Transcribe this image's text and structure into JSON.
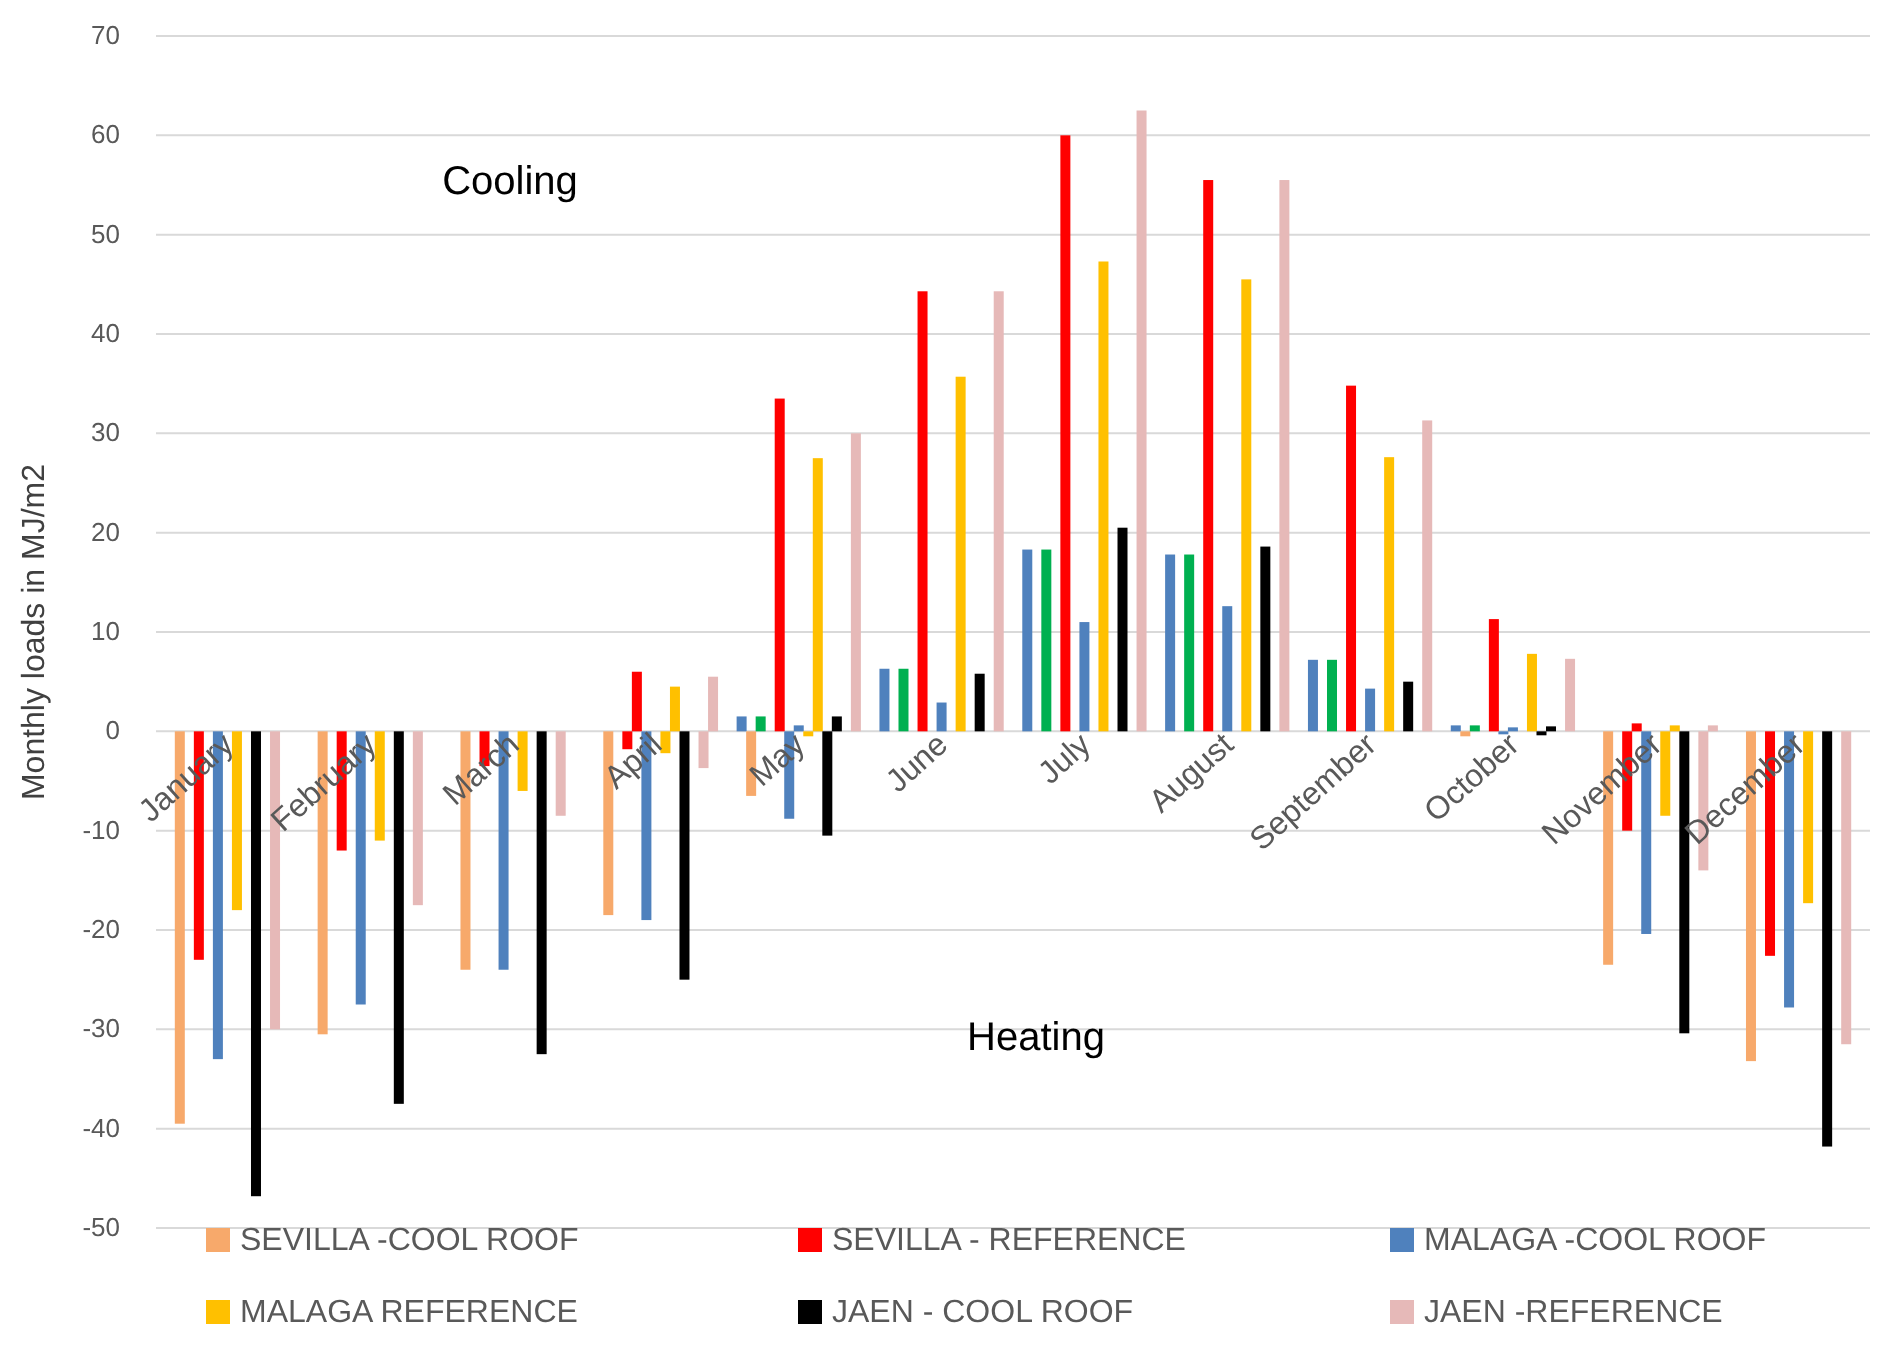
{
  "chart_data": {
    "type": "bar",
    "ylabel": "Monthly loads in MJ/m2",
    "categories": [
      "January",
      "February",
      "March",
      "April",
      "May",
      "June",
      "July",
      "August",
      "September",
      "October",
      "November",
      "December"
    ],
    "ylim": [
      -50,
      70
    ],
    "yticks": [
      -50,
      -40,
      -30,
      -20,
      -10,
      0,
      10,
      20,
      30,
      40,
      50,
      60,
      70
    ],
    "grid": "y",
    "legend": "bottom",
    "annotations": [
      "Cooling",
      "Heating"
    ],
    "series": [
      {
        "color": "#4f81bd",
        "values": [
          0,
          0,
          0,
          0,
          1.5,
          6.3,
          18.3,
          17.8,
          7.2,
          0.6,
          0,
          0
        ]
      },
      {
        "name": "SEVILLA -COOL ROOF",
        "color": "#f7a96b",
        "values": [
          -39.5,
          -30.5,
          -24,
          -18.5,
          -6.5,
          0,
          0,
          0,
          0,
          -0.5,
          -23.5,
          -33.2
        ]
      },
      {
        "color": "#00b050",
        "values": [
          0,
          0,
          0,
          0,
          1.5,
          6.3,
          18.3,
          17.8,
          7.2,
          0.6,
          0,
          0
        ]
      },
      {
        "name": "SEVILLA - REFERENCE",
        "color": "#ff0000",
        "values": [
          -23,
          -12,
          -3.5,
          -1.8,
          0,
          0,
          0,
          0,
          0,
          0,
          -10,
          -22.6
        ]
      },
      {
        "color": "#ff0000",
        "values": [
          0,
          0,
          0,
          6,
          33.5,
          44.3,
          60,
          55.5,
          34.8,
          11.3,
          0.8,
          0
        ]
      },
      {
        "name": "MALAGA   -COOL ROOF",
        "color": "#4f81bd",
        "values": [
          -33,
          -27.5,
          -24,
          -19,
          -8.8,
          0,
          0,
          0,
          0,
          -0.3,
          -20.4,
          -27.8
        ]
      },
      {
        "color": "#4f81bd",
        "values": [
          0,
          0,
          0,
          0,
          0.6,
          2.9,
          11,
          12.6,
          4.3,
          0.4,
          0,
          0
        ]
      },
      {
        "name": "MALAGA REFERENCE",
        "color": "#ffc000",
        "values": [
          -18,
          -11,
          -6,
          -2.2,
          -0.5,
          0,
          0,
          0,
          0,
          0,
          -8.5,
          -17.3
        ]
      },
      {
        "color": "#ffc000",
        "values": [
          0,
          0,
          0,
          4.5,
          27.5,
          35.7,
          47.3,
          45.5,
          27.6,
          7.8,
          0.6,
          0
        ]
      },
      {
        "name": "JAEN - COOL ROOF",
        "color": "#000000",
        "values": [
          -46.8,
          -37.5,
          -32.5,
          -25,
          -10.5,
          0,
          0,
          0,
          0,
          -0.4,
          -30.4,
          -41.8
        ]
      },
      {
        "color": "#000000",
        "values": [
          0,
          0,
          0,
          0,
          1.5,
          5.8,
          20.5,
          18.6,
          5,
          0.5,
          0,
          0
        ]
      },
      {
        "name": "JAEN -REFERENCE",
        "color": "#e6b9b8",
        "values": [
          -30,
          -17.5,
          -8.5,
          -3.7,
          0,
          0,
          0,
          0,
          0,
          0,
          -14,
          -31.5
        ]
      },
      {
        "color": "#e6b9b8",
        "values": [
          0,
          0,
          0,
          5.5,
          30,
          44.3,
          62.5,
          55.5,
          31.3,
          7.3,
          0.6,
          0
        ]
      }
    ]
  }
}
